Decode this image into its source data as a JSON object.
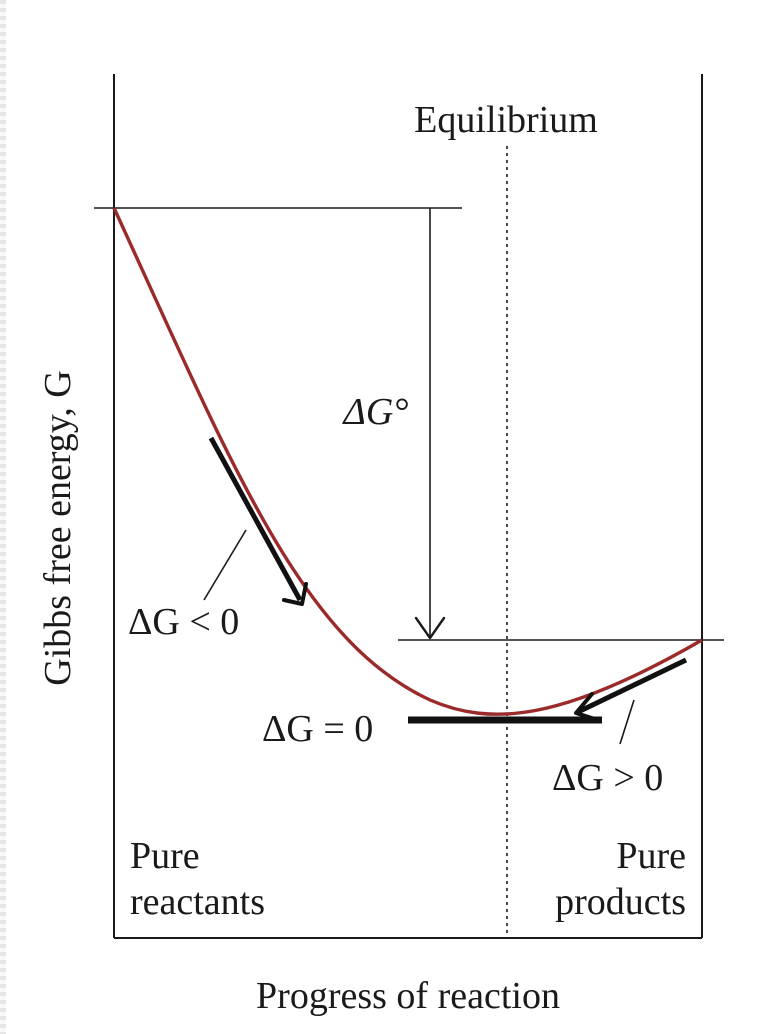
{
  "diagram": {
    "y_axis_label": "Gibbs free energy, G",
    "x_axis_label": "Progress of reaction",
    "equilibrium_label": "Equilibrium",
    "delta_g_standard_label": "ΔG°",
    "delta_g_negative_label": "ΔG < 0",
    "delta_g_zero_label": "ΔG = 0",
    "delta_g_positive_label": "ΔG > 0",
    "pure_reactants_label": [
      "Pure",
      "reactants"
    ],
    "pure_products_label": [
      "Pure",
      "products"
    ],
    "colors": {
      "curve": "#9b2a2a",
      "lines": "#1a1a1a"
    }
  }
}
